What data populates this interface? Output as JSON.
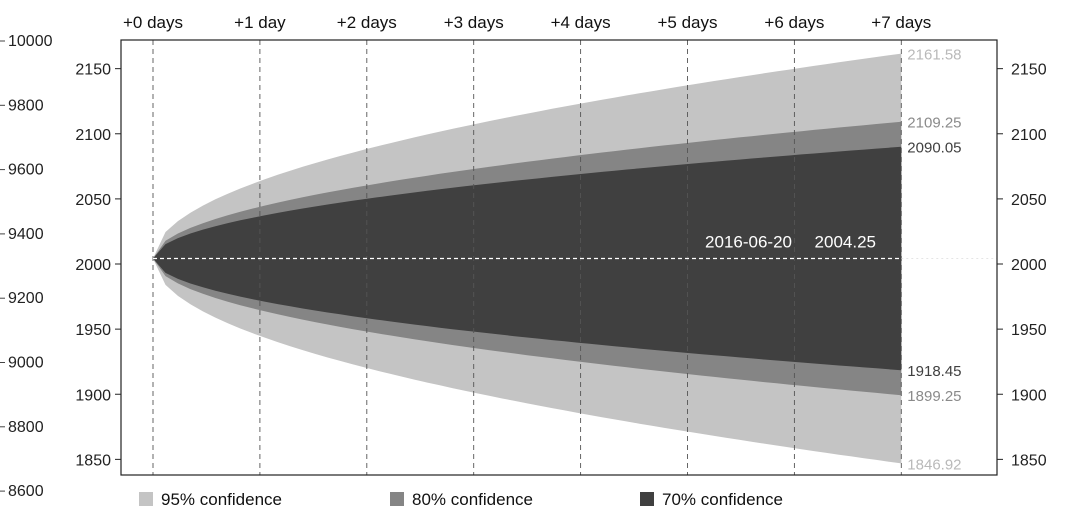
{
  "chart_data": {
    "type": "area",
    "top_axis_labels": [
      "+0 days",
      "+1 day",
      "+2 days",
      "+3 days",
      "+4 days",
      "+5 days",
      "+6 days",
      "+7 days"
    ],
    "x": [
      0,
      1,
      2,
      3,
      4,
      5,
      6,
      7
    ],
    "left_outer_ticks": [
      "10000",
      "9800",
      "9600",
      "9400",
      "9200",
      "9000",
      "8800",
      "8600"
    ],
    "y_ticks": [
      2150,
      2100,
      2050,
      2000,
      1950,
      1900,
      1850
    ],
    "ylim": [
      1838,
      2172
    ],
    "center": {
      "date": "2016-06-20",
      "value": 2004.25
    },
    "bands": [
      {
        "name": "95% confidence",
        "color": "#c4c4c4",
        "upper_end": 2161.58,
        "lower_end": 1846.92,
        "label_color": "#b9b9b9"
      },
      {
        "name": "80% confidence",
        "color": "#858585",
        "upper_end": 2109.25,
        "lower_end": 1899.25,
        "label_color": "#8a8a8a"
      },
      {
        "name": "70% confidence",
        "color": "#404040",
        "upper_end": 2090.05,
        "lower_end": 1918.45,
        "label_color": "#404040"
      }
    ],
    "end_labels": {
      "upper": [
        "2161.58",
        "2109.25",
        "2090.05"
      ],
      "lower": [
        "1918.45",
        "1899.25",
        "1846.92"
      ]
    },
    "center_labels": {
      "date": "2016-06-20",
      "value": "2004.25"
    },
    "legend": [
      "95% confidence",
      "80% confidence",
      "70% confidence"
    ],
    "legend_placement": "bottom",
    "grid": "vertical dashed"
  }
}
